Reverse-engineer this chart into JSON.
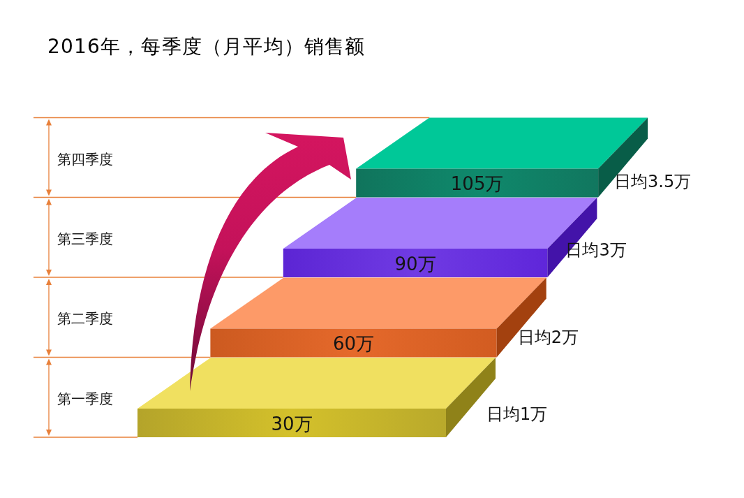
{
  "chart_data": {
    "type": "other",
    "title": "2016年，每季度（月平均）销售额",
    "categories": [
      "第一季度",
      "第二季度",
      "第三季度",
      "第四季度"
    ],
    "series": [
      {
        "values": [
          30,
          60,
          90,
          105
        ],
        "value_labels": [
          "30万",
          "60万",
          "90万",
          "105万"
        ],
        "colors": [
          "#f0e060",
          "#fd9a68",
          "#a57dfb",
          "#00c898"
        ]
      },
      {
        "values": [
          1,
          2,
          3,
          3.5
        ],
        "value_labels": [
          "日均1万",
          "日均2万",
          "日均3万",
          "日均3.5万"
        ]
      }
    ]
  }
}
